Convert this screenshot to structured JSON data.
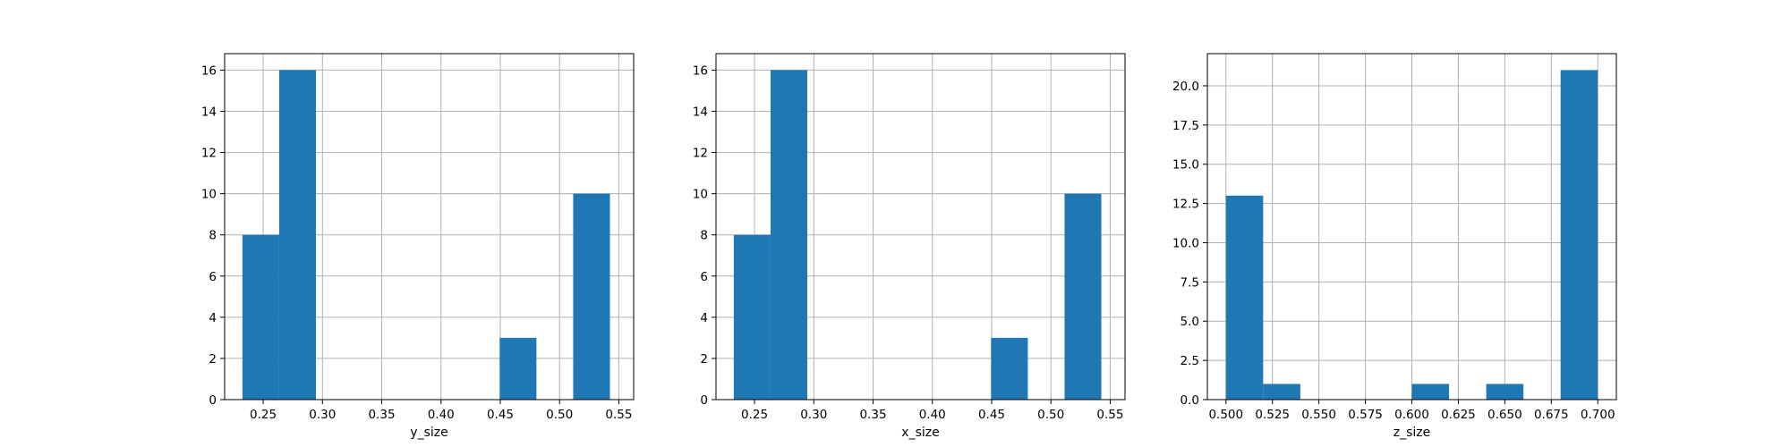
{
  "colors": {
    "bar": "#1f77b4",
    "grid": "#b0b0b0",
    "axis": "#000000",
    "background": "#ffffff"
  },
  "chart_data": [
    {
      "type": "histogram",
      "xlabel": "y_size",
      "xlim": [
        0.2175,
        0.5625
      ],
      "ylim": [
        0,
        16.8
      ],
      "xticks": [
        0.25,
        0.3,
        0.35,
        0.4,
        0.45,
        0.5,
        0.55
      ],
      "xtick_labels": [
        "0.25",
        "0.30",
        "0.35",
        "0.40",
        "0.45",
        "0.50",
        "0.55"
      ],
      "yticks": [
        0,
        2,
        4,
        6,
        8,
        10,
        12,
        14,
        16
      ],
      "ytick_labels": [
        "0",
        "2",
        "4",
        "6",
        "8",
        "10",
        "12",
        "14",
        "16"
      ],
      "bin_edges": [
        0.2325,
        0.2635,
        0.2945,
        0.3255,
        0.3565,
        0.3875,
        0.4185,
        0.4495,
        0.4805,
        0.5115,
        0.5425
      ],
      "counts": [
        8,
        16,
        0,
        0,
        0,
        0,
        0,
        3,
        0,
        10
      ],
      "grid": true
    },
    {
      "type": "histogram",
      "xlabel": "x_size",
      "xlim": [
        0.2175,
        0.5625
      ],
      "ylim": [
        0,
        16.8
      ],
      "xticks": [
        0.25,
        0.3,
        0.35,
        0.4,
        0.45,
        0.5,
        0.55
      ],
      "xtick_labels": [
        "0.25",
        "0.30",
        "0.35",
        "0.40",
        "0.45",
        "0.50",
        "0.55"
      ],
      "yticks": [
        0,
        2,
        4,
        6,
        8,
        10,
        12,
        14,
        16
      ],
      "ytick_labels": [
        "0",
        "2",
        "4",
        "6",
        "8",
        "10",
        "12",
        "14",
        "16"
      ],
      "bin_edges": [
        0.2325,
        0.2635,
        0.2945,
        0.3255,
        0.3565,
        0.3875,
        0.4185,
        0.4495,
        0.4805,
        0.5115,
        0.5425
      ],
      "counts": [
        8,
        16,
        0,
        0,
        0,
        0,
        0,
        3,
        0,
        10
      ],
      "grid": true
    },
    {
      "type": "histogram",
      "xlabel": "z_size",
      "xlim": [
        0.49,
        0.71
      ],
      "ylim": [
        0,
        22.05
      ],
      "xticks": [
        0.5,
        0.525,
        0.55,
        0.575,
        0.6,
        0.625,
        0.65,
        0.675,
        0.7
      ],
      "xtick_labels": [
        "0.500",
        "0.525",
        "0.550",
        "0.575",
        "0.600",
        "0.625",
        "0.650",
        "0.675",
        "0.700"
      ],
      "yticks": [
        0,
        2.5,
        5,
        7.5,
        10,
        12.5,
        15,
        17.5,
        20
      ],
      "ytick_labels": [
        "0.0",
        "2.5",
        "5.0",
        "7.5",
        "10.0",
        "12.5",
        "15.0",
        "17.5",
        "20.0"
      ],
      "bin_edges": [
        0.5,
        0.52,
        0.54,
        0.56,
        0.58,
        0.6,
        0.62,
        0.64,
        0.66,
        0.68,
        0.7
      ],
      "counts": [
        13,
        1,
        0,
        0,
        0,
        1,
        0,
        1,
        0,
        21
      ],
      "grid": true
    }
  ]
}
